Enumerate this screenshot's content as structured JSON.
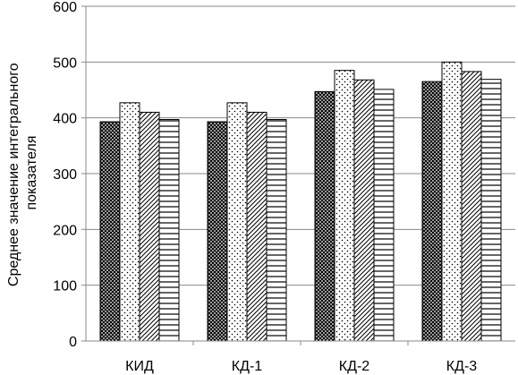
{
  "chart_data": {
    "type": "bar",
    "title": "",
    "xlabel": "",
    "ylabel_line1": "Среднее значение интегрального",
    "ylabel_line2": "показателя",
    "categories": [
      "КИД",
      "КД-1",
      "КД-2",
      "КД-3"
    ],
    "ylim": [
      0,
      600
    ],
    "yticks": [
      0,
      100,
      200,
      300,
      400,
      500,
      600
    ],
    "grid": true,
    "legend": "none",
    "series": [
      {
        "pattern": "crosshatch-dense",
        "values": [
          393,
          393,
          447,
          465
        ]
      },
      {
        "pattern": "dots",
        "values": [
          427,
          427,
          485,
          500
        ]
      },
      {
        "pattern": "diagonal",
        "values": [
          410,
          410,
          468,
          483
        ]
      },
      {
        "pattern": "horizontal",
        "values": [
          397,
          397,
          451,
          469
        ]
      }
    ]
  }
}
